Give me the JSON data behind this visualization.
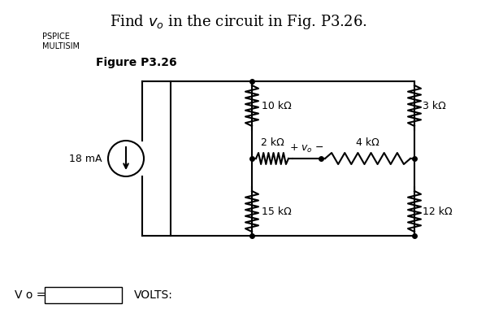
{
  "title": "Find $v_o$ in the circuit in Fig. P3.26.",
  "pspice_label": "PSPICE",
  "multisim_label": "MULTISIM",
  "figure_label": "Figure P3.26",
  "current_source_label": "18 mA",
  "resistors": {
    "R10k": "10 kΩ",
    "R15k": "15 kΩ",
    "R2k": "2 kΩ",
    "R4k": "4 kΩ",
    "R3k": "3 kΩ",
    "R12k": "12 kΩ"
  },
  "vo_label": "+ $v_o$ −",
  "vo_answer_label": "V o =",
  "volts_label": "VOLTS:",
  "bg_color": "#ffffff",
  "line_color": "#000000",
  "box_color": "#f0f0f0"
}
